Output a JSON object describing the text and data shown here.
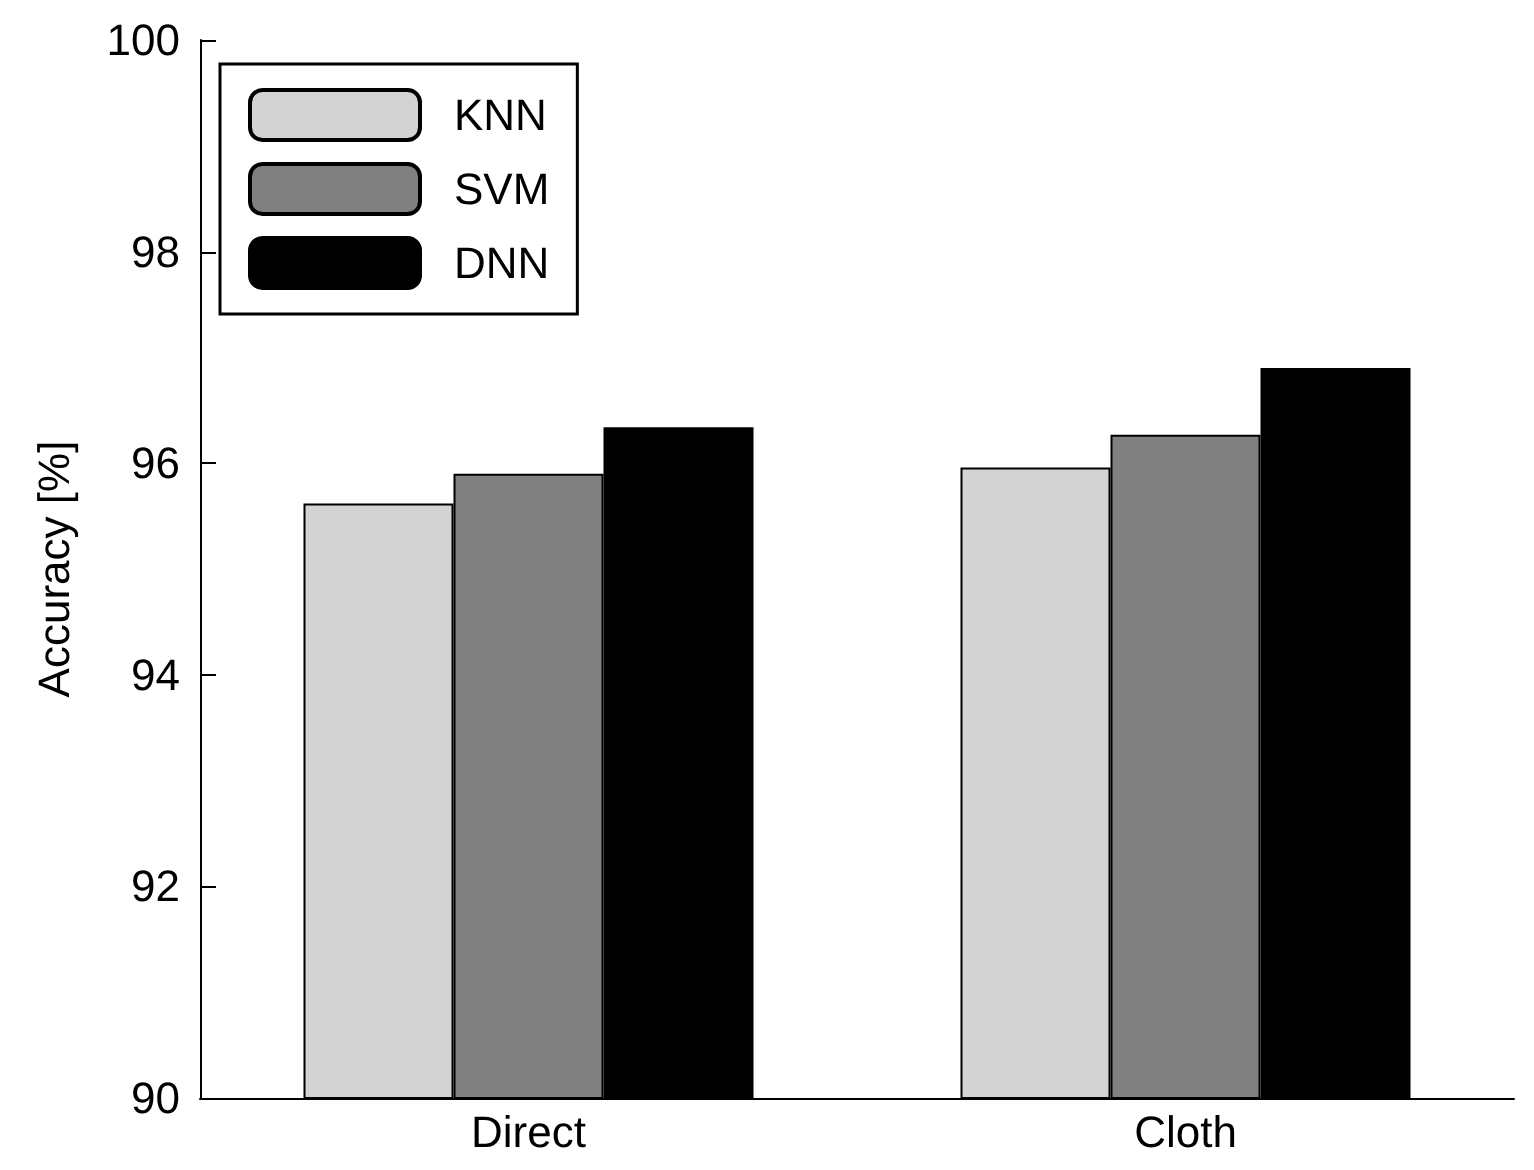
{
  "chart_data": {
    "type": "bar",
    "ylabel": "Accuracy [%]",
    "categories": [
      "Direct",
      "Cloth"
    ],
    "series": [
      {
        "name": "KNN",
        "color": "#d3d3d3",
        "values": [
          95.62,
          95.96
        ]
      },
      {
        "name": "SVM",
        "color": "#808080",
        "values": [
          95.9,
          96.27
        ]
      },
      {
        "name": "DNN",
        "color": "#000000",
        "values": [
          96.34,
          96.9
        ]
      }
    ],
    "ylim": [
      90,
      100
    ],
    "yticks": [
      90,
      92,
      94,
      96,
      98,
      100
    ],
    "grid": false,
    "legend": "top left"
  }
}
